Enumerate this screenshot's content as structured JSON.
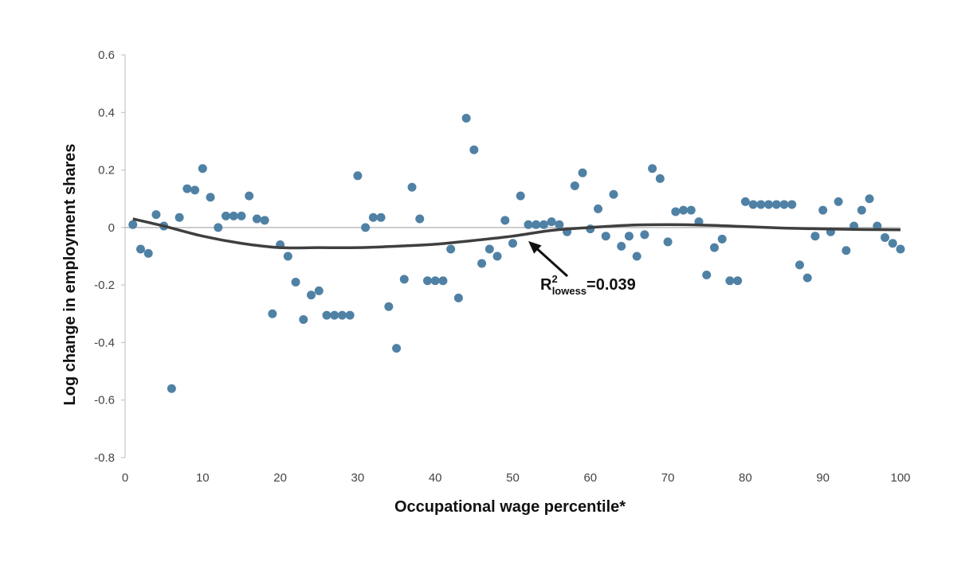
{
  "chart_data": {
    "type": "scatter",
    "title": "",
    "xlabel": "Occupational wage percentile*",
    "ylabel": "Log change in employment shares",
    "xlim": [
      0,
      100
    ],
    "ylim": [
      -0.8,
      0.6
    ],
    "x_ticks": [
      0,
      10,
      20,
      30,
      40,
      50,
      60,
      70,
      80,
      90,
      100
    ],
    "x_tick_labels": [
      "0",
      "10",
      "20",
      "30",
      "40",
      "50",
      "60",
      "70",
      "80",
      "90",
      "100"
    ],
    "y_ticks": [
      -0.8,
      -0.6,
      -0.4,
      -0.2,
      0,
      0.2,
      0.4,
      0.6
    ],
    "y_tick_labels": [
      "-0.8",
      "-0.6",
      "-0.4",
      "-0.2",
      "0",
      "0.2",
      "0.4",
      "0.6"
    ],
    "grid": false,
    "colors": {
      "points": "#4f81a5",
      "curve": "#3f3f3f",
      "zero_line": "#bbbbbb",
      "axis": "#bbbbbb"
    },
    "series": [
      {
        "x": [
          1,
          2,
          3,
          4,
          5,
          6,
          7,
          8,
          9,
          10,
          11,
          12,
          13,
          14,
          15,
          16,
          17,
          18,
          19,
          20,
          21,
          22,
          23,
          24,
          25,
          26,
          27,
          28,
          29,
          30,
          31,
          32,
          33,
          34,
          35,
          36,
          37,
          38,
          39,
          40,
          41,
          42,
          43,
          44,
          45,
          46,
          47,
          48,
          49,
          50,
          51,
          52,
          53,
          54,
          55,
          56,
          57,
          58,
          59,
          60,
          61,
          62,
          63,
          64,
          65,
          66,
          67,
          68,
          69,
          70,
          71,
          72,
          73,
          74,
          75,
          76,
          77,
          78,
          79,
          80,
          81,
          82,
          83,
          84,
          85,
          86,
          87,
          88,
          89,
          90,
          91,
          92,
          93,
          94,
          95,
          96,
          97,
          98,
          99,
          100
        ],
        "y": [
          0.01,
          -0.075,
          -0.09,
          0.045,
          0.005,
          -0.56,
          0.035,
          0.135,
          0.13,
          0.205,
          0.105,
          0,
          0.04,
          0.04,
          0.04,
          0.11,
          0.03,
          0.025,
          -0.3,
          -0.06,
          -0.1,
          -0.19,
          -0.32,
          -0.235,
          -0.22,
          -0.305,
          -0.305,
          -0.305,
          -0.305,
          0.18,
          0,
          0.035,
          0.035,
          -0.275,
          -0.42,
          -0.18,
          0.14,
          0.03,
          -0.185,
          -0.185,
          -0.185,
          -0.075,
          -0.245,
          0.38,
          0.27,
          -0.125,
          -0.075,
          -0.1,
          0.025,
          -0.055,
          0.11,
          0.01,
          0.01,
          0.01,
          0.02,
          0.01,
          -0.015,
          0.145,
          0.19,
          -0.005,
          0.065,
          -0.03,
          0.115,
          -0.065,
          -0.03,
          -0.1,
          -0.025,
          0.205,
          0.17,
          -0.05,
          0.055,
          0.06,
          0.06,
          0.02,
          -0.165,
          -0.07,
          -0.04,
          -0.185,
          -0.185,
          0.09,
          0.08,
          0.08,
          0.08,
          0.08,
          0.08,
          0.08,
          -0.13,
          -0.175,
          -0.03,
          0.06,
          -0.015,
          0.09,
          -0.08,
          0.005,
          0.06,
          0.1,
          0.005,
          -0.035,
          -0.055,
          -0.075
        ]
      },
      {
        "type": "line",
        "x": [
          1,
          5,
          10,
          15,
          20,
          25,
          30,
          35,
          40,
          45,
          50,
          55,
          60,
          65,
          70,
          75,
          80,
          85,
          90,
          95,
          100
        ],
        "y": [
          0.03,
          0.005,
          -0.03,
          -0.055,
          -0.07,
          -0.07,
          -0.07,
          -0.065,
          -0.058,
          -0.045,
          -0.03,
          -0.01,
          0,
          0.008,
          0.01,
          0.008,
          0.003,
          -0.002,
          -0.005,
          -0.007,
          -0.008
        ]
      }
    ],
    "annotation": {
      "r_main": "R",
      "r_sup": "2",
      "r_sub": "lowess",
      "r_value": "=0.039",
      "points_to_x": 52
    }
  }
}
